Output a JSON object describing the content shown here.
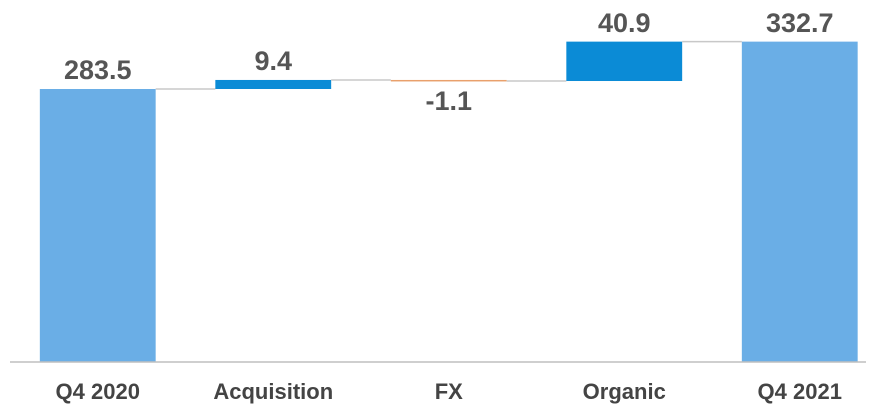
{
  "chart_data": {
    "type": "waterfall",
    "categories": [
      "Q4 2020",
      "Acquisition",
      "FX",
      "Organic",
      "Q4 2021"
    ],
    "values": [
      283.5,
      9.4,
      -1.1,
      40.9,
      332.7
    ],
    "is_total": [
      true,
      false,
      false,
      false,
      true
    ],
    "colors": {
      "total": "#6aaee6",
      "increase": "#0b8bd6",
      "decrease": "#e9a06c"
    },
    "ylim": [
      0,
      340
    ]
  }
}
